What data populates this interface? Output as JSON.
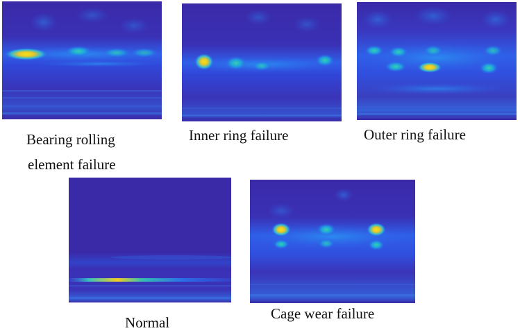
{
  "colormap": {
    "low": "#3a2aa8",
    "band": "#2f5fe8",
    "mid": "#1fa8e0",
    "high": "#35d0a8",
    "peak": "#f5d41a"
  },
  "panels": [
    {
      "id": "rolling",
      "caption": [
        "Bearing rolling",
        "element failure"
      ]
    },
    {
      "id": "inner",
      "caption": [
        "Inner ring failure"
      ]
    },
    {
      "id": "outer",
      "caption": [
        "Outer ring failure"
      ]
    },
    {
      "id": "normal",
      "caption": [
        "Normal"
      ]
    },
    {
      "id": "cage",
      "caption": [
        "Cage wear failure"
      ]
    }
  ]
}
